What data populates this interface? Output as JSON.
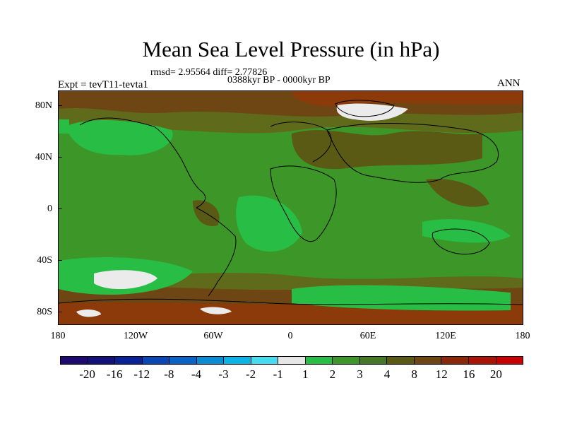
{
  "title": "Mean Sea Level Pressure (in hPa)",
  "stats": "rmsd= 2.95564 diff= 2.77826",
  "period": "0388kyr BP - 0000kyr BP",
  "expt": "Expt = tevT11-tevta1",
  "season": "ANN",
  "lat_labels": [
    "80N",
    "40N",
    "0",
    "40S",
    "80S"
  ],
  "lon_labels": [
    "180",
    "120W",
    "60W",
    "0",
    "60E",
    "120E",
    "180"
  ],
  "colorbar": {
    "colors": [
      "#1e0a6e",
      "#12127a",
      "#0a2296",
      "#0a46b4",
      "#0a64c8",
      "#0a8cd2",
      "#0ab4e6",
      "#46dcf0",
      "#e6e6e6",
      "#28be46",
      "#3c9628",
      "#467828",
      "#5a5a14",
      "#6e4614",
      "#8c280a",
      "#aa1405",
      "#c80000"
    ],
    "labels": [
      "-20",
      "-16",
      "-12",
      "-8",
      "-4",
      "-3",
      "-2",
      "-1",
      "1",
      "2",
      "3",
      "4",
      "8",
      "12",
      "16",
      "20"
    ]
  },
  "legend_colors": {
    "bg": "#5f6a1a",
    "green_light": "#28be46",
    "green_mid": "#3c9628",
    "olive": "#5a5a14",
    "brown": "#6e4614",
    "brown_dark": "#8c3a0a",
    "white": "#ebebeb"
  }
}
